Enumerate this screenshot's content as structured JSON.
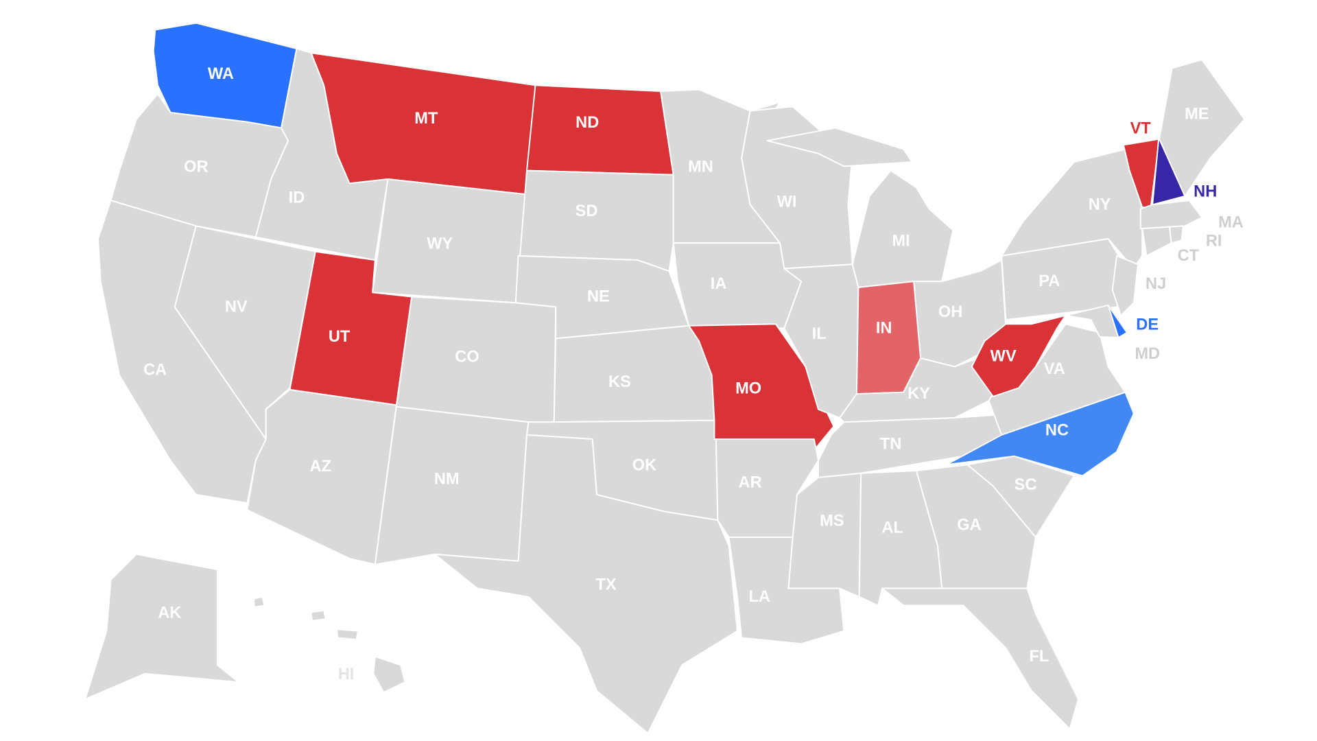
{
  "colors": {
    "none": "#d9d9d9",
    "red": "#d93338",
    "light_red": "#e26468",
    "blue": "#2a71ff",
    "light_blue": "#4288f5",
    "purple": "#3727a6",
    "label_default": "#ffffff",
    "label_outside_gray": "#cfcfcf"
  },
  "states": [
    {
      "code": "WA",
      "label": "WA",
      "status": "blue"
    },
    {
      "code": "OR",
      "label": "OR",
      "status": "none"
    },
    {
      "code": "CA",
      "label": "CA",
      "status": "none"
    },
    {
      "code": "ID",
      "label": "ID",
      "status": "none"
    },
    {
      "code": "NV",
      "label": "NV",
      "status": "none"
    },
    {
      "code": "MT",
      "label": "MT",
      "status": "red"
    },
    {
      "code": "WY",
      "label": "WY",
      "status": "none"
    },
    {
      "code": "UT",
      "label": "UT",
      "status": "red"
    },
    {
      "code": "AZ",
      "label": "AZ",
      "status": "none"
    },
    {
      "code": "CO",
      "label": "CO",
      "status": "none"
    },
    {
      "code": "NM",
      "label": "NM",
      "status": "none"
    },
    {
      "code": "ND",
      "label": "ND",
      "status": "red"
    },
    {
      "code": "SD",
      "label": "SD",
      "status": "none"
    },
    {
      "code": "NE",
      "label": "NE",
      "status": "none"
    },
    {
      "code": "KS",
      "label": "KS",
      "status": "none"
    },
    {
      "code": "OK",
      "label": "OK",
      "status": "none"
    },
    {
      "code": "TX",
      "label": "TX",
      "status": "none"
    },
    {
      "code": "MN",
      "label": "MN",
      "status": "none"
    },
    {
      "code": "IA",
      "label": "IA",
      "status": "none"
    },
    {
      "code": "MO",
      "label": "MO",
      "status": "red"
    },
    {
      "code": "AR",
      "label": "AR",
      "status": "none"
    },
    {
      "code": "LA",
      "label": "LA",
      "status": "none"
    },
    {
      "code": "WI",
      "label": "WI",
      "status": "none"
    },
    {
      "code": "IL",
      "label": "IL",
      "status": "none"
    },
    {
      "code": "MI",
      "label": "MI",
      "status": "none"
    },
    {
      "code": "IN",
      "label": "IN",
      "status": "light_red"
    },
    {
      "code": "OH",
      "label": "OH",
      "status": "none"
    },
    {
      "code": "KY",
      "label": "KY",
      "status": "none"
    },
    {
      "code": "TN",
      "label": "TN",
      "status": "none"
    },
    {
      "code": "MS",
      "label": "MS",
      "status": "none"
    },
    {
      "code": "AL",
      "label": "AL",
      "status": "none"
    },
    {
      "code": "GA",
      "label": "GA",
      "status": "none"
    },
    {
      "code": "FL",
      "label": "FL",
      "status": "none"
    },
    {
      "code": "SC",
      "label": "SC",
      "status": "none"
    },
    {
      "code": "NC",
      "label": "NC",
      "status": "light_blue"
    },
    {
      "code": "VA",
      "label": "VA",
      "status": "none"
    },
    {
      "code": "WV",
      "label": "WV",
      "status": "red"
    },
    {
      "code": "PA",
      "label": "PA",
      "status": "none"
    },
    {
      "code": "NY",
      "label": "NY",
      "status": "none"
    },
    {
      "code": "VT",
      "label": "VT",
      "status": "red"
    },
    {
      "code": "NH",
      "label": "NH",
      "status": "purple"
    },
    {
      "code": "ME",
      "label": "ME",
      "status": "none"
    },
    {
      "code": "MA",
      "label": "MA",
      "status": "none"
    },
    {
      "code": "RI",
      "label": "RI",
      "status": "none"
    },
    {
      "code": "CT",
      "label": "CT",
      "status": "none"
    },
    {
      "code": "NJ",
      "label": "NJ",
      "status": "none"
    },
    {
      "code": "DE",
      "label": "DE",
      "status": "blue"
    },
    {
      "code": "MD",
      "label": "MD",
      "status": "none"
    },
    {
      "code": "AK",
      "label": "AK",
      "status": "none"
    },
    {
      "code": "HI",
      "label": "HI",
      "status": "none"
    }
  ]
}
